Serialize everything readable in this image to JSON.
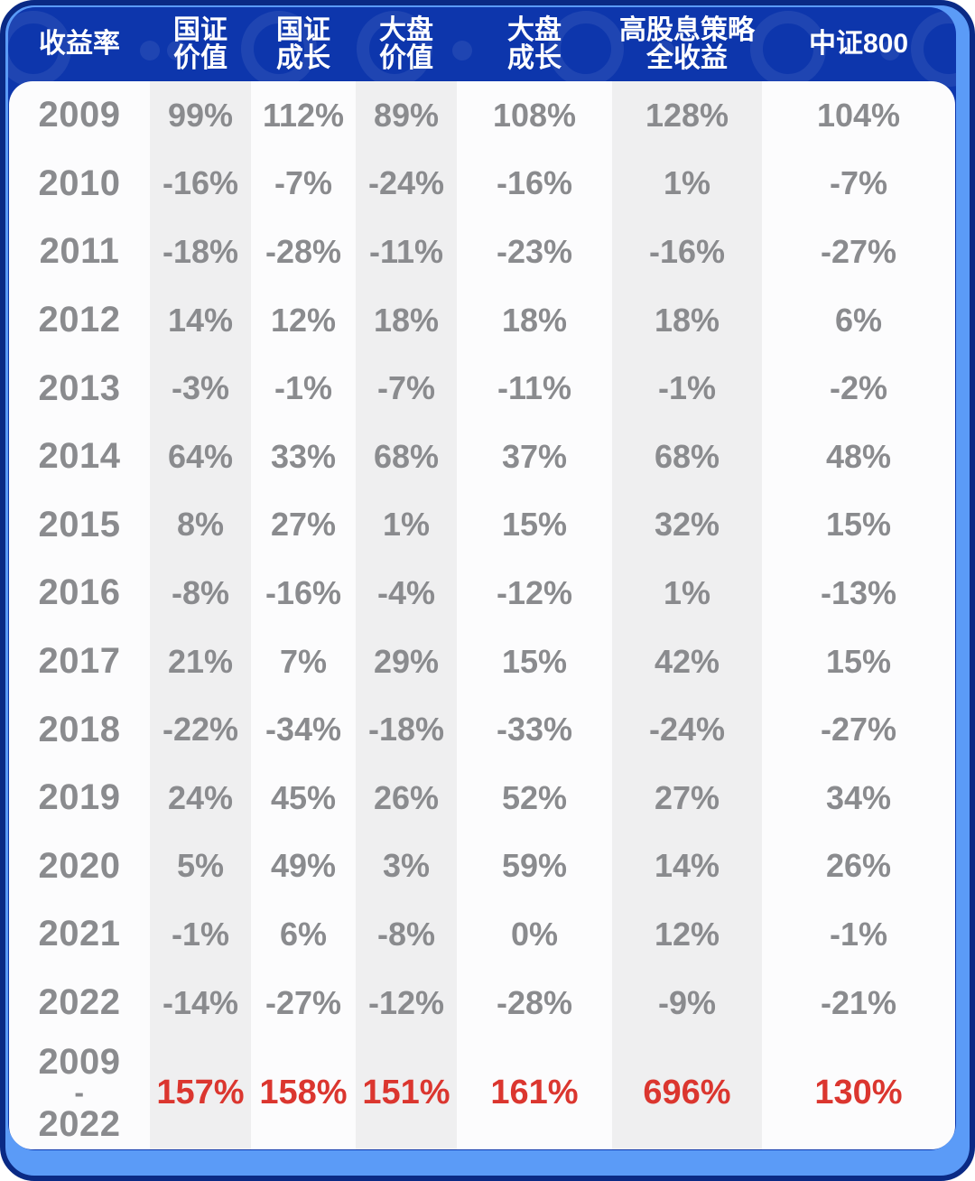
{
  "colors": {
    "frame_navy": "#0A2A85",
    "frame_light_blue": "#5B9BF7",
    "header_blue": "#0D36AC",
    "card_white": "#FCFCFD",
    "stripe_gray": "#EFEFF0",
    "value_text_gray": "#8A8B8E",
    "header_text_white": "#FFFFFF",
    "total_red": "#DB362F"
  },
  "table": {
    "corner_label": "收益率",
    "columns": [
      {
        "lines": [
          "国证",
          "价值"
        ]
      },
      {
        "lines": [
          "国证",
          "成长"
        ]
      },
      {
        "lines": [
          "大盘",
          "价值"
        ]
      },
      {
        "lines": [
          "大盘",
          "成长"
        ]
      },
      {
        "lines": [
          "高股息策略",
          "全收益"
        ]
      },
      {
        "lines": [
          "中证800"
        ]
      }
    ],
    "rows": [
      {
        "year": "2009",
        "values": [
          "99%",
          "112%",
          "89%",
          "108%",
          "128%",
          "104%"
        ]
      },
      {
        "year": "2010",
        "values": [
          "-16%",
          "-7%",
          "-24%",
          "-16%",
          "1%",
          "-7%"
        ]
      },
      {
        "year": "2011",
        "values": [
          "-18%",
          "-28%",
          "-11%",
          "-23%",
          "-16%",
          "-27%"
        ]
      },
      {
        "year": "2012",
        "values": [
          "14%",
          "12%",
          "18%",
          "18%",
          "18%",
          "6%"
        ]
      },
      {
        "year": "2013",
        "values": [
          "-3%",
          "-1%",
          "-7%",
          "-11%",
          "-1%",
          "-2%"
        ]
      },
      {
        "year": "2014",
        "values": [
          "64%",
          "33%",
          "68%",
          "37%",
          "68%",
          "48%"
        ]
      },
      {
        "year": "2015",
        "values": [
          "8%",
          "27%",
          "1%",
          "15%",
          "32%",
          "15%"
        ]
      },
      {
        "year": "2016",
        "values": [
          "-8%",
          "-16%",
          "-4%",
          "-12%",
          "1%",
          "-13%"
        ]
      },
      {
        "year": "2017",
        "values": [
          "21%",
          "7%",
          "29%",
          "15%",
          "42%",
          "15%"
        ]
      },
      {
        "year": "2018",
        "values": [
          "-22%",
          "-34%",
          "-18%",
          "-33%",
          "-24%",
          "-27%"
        ]
      },
      {
        "year": "2019",
        "values": [
          "24%",
          "45%",
          "26%",
          "52%",
          "27%",
          "34%"
        ]
      },
      {
        "year": "2020",
        "values": [
          "5%",
          "49%",
          "3%",
          "59%",
          "14%",
          "26%"
        ]
      },
      {
        "year": "2021",
        "values": [
          "-1%",
          "6%",
          "-8%",
          "0%",
          "12%",
          "-1%"
        ]
      },
      {
        "year": "2022",
        "values": [
          "-14%",
          "-27%",
          "-12%",
          "-28%",
          "-9%",
          "-21%"
        ]
      }
    ],
    "total_row": {
      "year_lines": [
        "2009",
        "-",
        "2022"
      ],
      "values": [
        "157%",
        "158%",
        "151%",
        "161%",
        "696%",
        "130%"
      ]
    }
  },
  "chart_data": {
    "type": "table",
    "title": "收益率",
    "categories": [
      "2009",
      "2010",
      "2011",
      "2012",
      "2013",
      "2014",
      "2015",
      "2016",
      "2017",
      "2018",
      "2019",
      "2020",
      "2021",
      "2022"
    ],
    "unit": "%",
    "series": [
      {
        "name": "国证价值",
        "values": [
          99,
          -16,
          -18,
          14,
          -3,
          64,
          8,
          -8,
          21,
          -22,
          24,
          5,
          -1,
          -14
        ],
        "total_2009_2022": 157
      },
      {
        "name": "国证成长",
        "values": [
          112,
          -7,
          -28,
          12,
          -1,
          33,
          27,
          -16,
          7,
          -34,
          45,
          49,
          6,
          -27
        ],
        "total_2009_2022": 158
      },
      {
        "name": "大盘价值",
        "values": [
          89,
          -24,
          -11,
          18,
          -7,
          68,
          1,
          -4,
          29,
          -18,
          26,
          3,
          -8,
          -12
        ],
        "total_2009_2022": 151
      },
      {
        "name": "大盘成长",
        "values": [
          108,
          -16,
          -23,
          18,
          -11,
          37,
          15,
          -12,
          15,
          -33,
          52,
          59,
          0,
          -28
        ],
        "total_2009_2022": 161
      },
      {
        "name": "高股息策略全收益",
        "values": [
          128,
          1,
          -16,
          18,
          -1,
          68,
          32,
          1,
          42,
          -24,
          27,
          14,
          12,
          -9
        ],
        "total_2009_2022": 696
      },
      {
        "name": "中证800",
        "values": [
          104,
          -7,
          -27,
          6,
          -2,
          48,
          15,
          -13,
          15,
          -27,
          34,
          26,
          -1,
          -21
        ],
        "total_2009_2022": 130
      }
    ],
    "legend_position": "top header row",
    "notes": "Yearly returns table; columns alternate white/light-gray; cumulative 2009-2022 row shown in red"
  }
}
